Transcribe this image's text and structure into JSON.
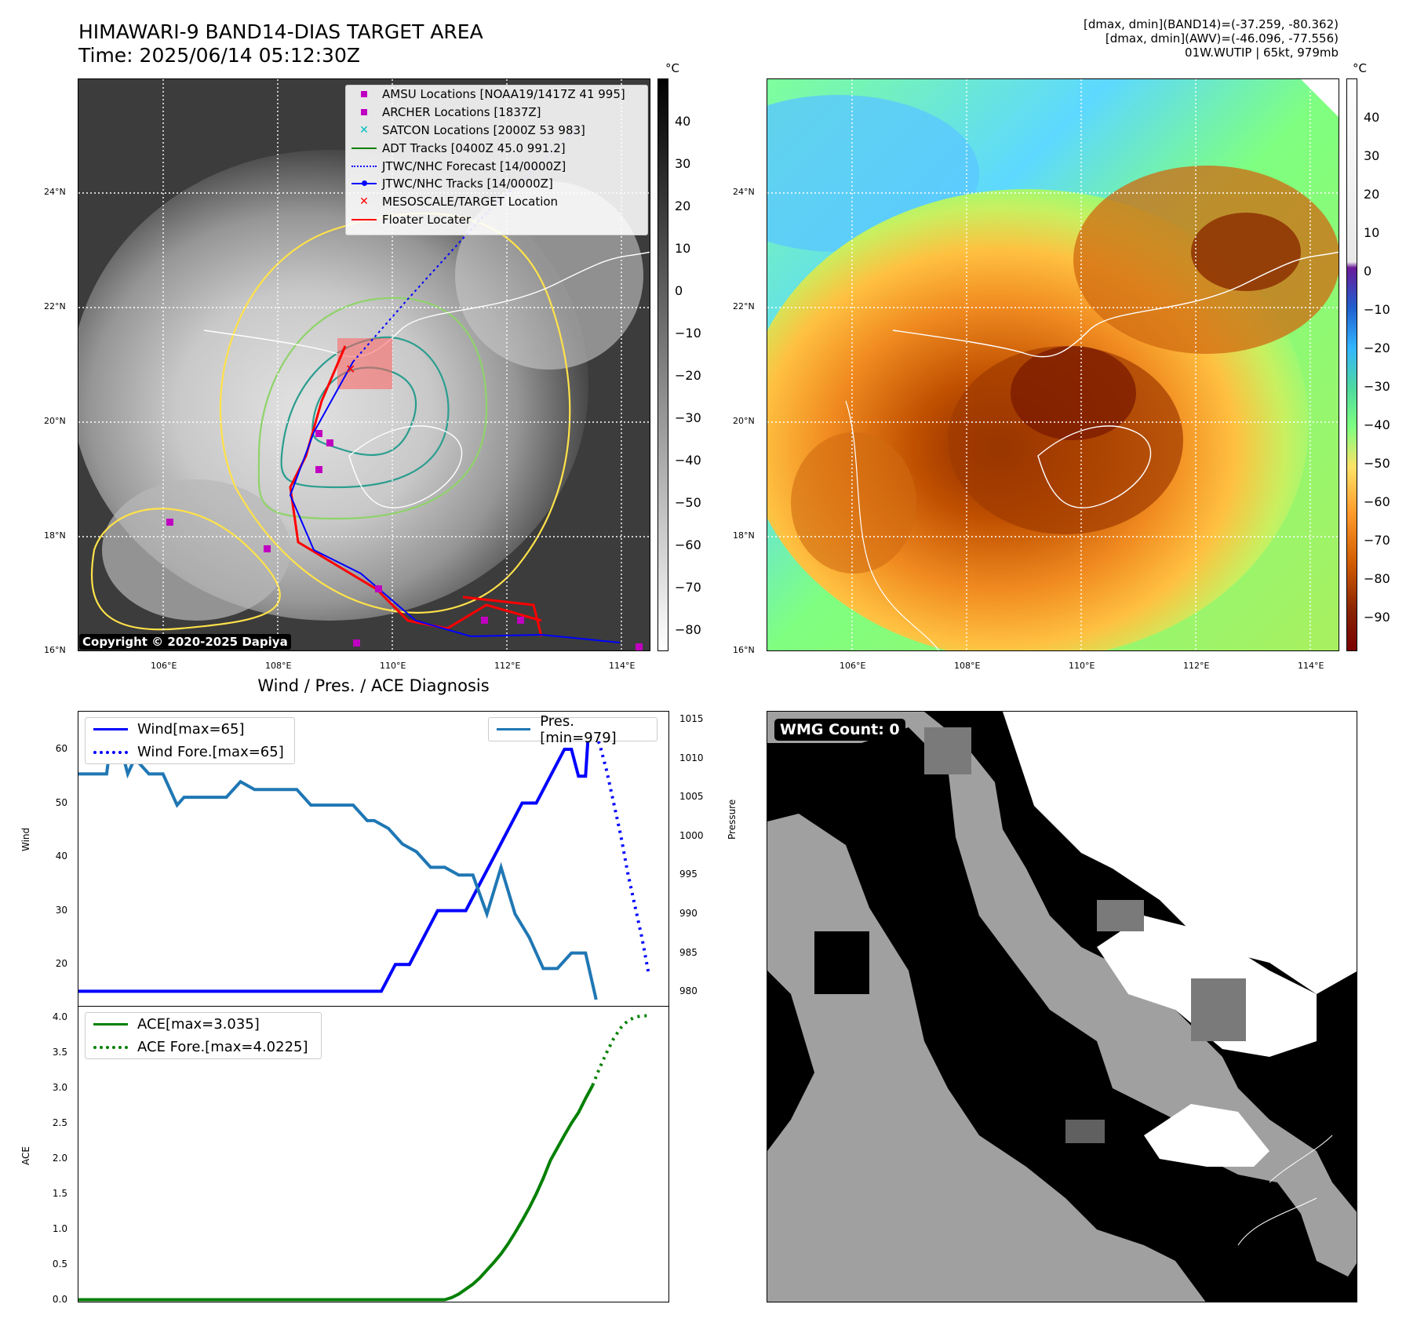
{
  "header": {
    "title_line1": "HIMAWARI-9 BAND14-DIAS TARGET AREA",
    "title_line2": "Time: 2025/06/14 05:12:30Z",
    "info_line1": "[dmax, dmin](BAND14)=(-37.259, -80.362)",
    "info_line2": "[dmax, dmin](AWV)=(-46.096, -77.556)",
    "info_line3": "01W.WUTIP | 65kt, 979mb"
  },
  "map_ticks": {
    "lat": [
      "24°N",
      "22°N",
      "20°N",
      "18°N",
      "16°N"
    ],
    "lon": [
      "106°E",
      "108°E",
      "110°E",
      "112°E",
      "114°E"
    ]
  },
  "colorbar_left": {
    "unit": "°C",
    "ticks": [
      "40",
      "30",
      "20",
      "10",
      "0",
      "−10",
      "−20",
      "−30",
      "−40",
      "−50",
      "−60",
      "−70",
      "−80"
    ]
  },
  "colorbar_right": {
    "unit": "°C",
    "ticks": [
      "40",
      "30",
      "20",
      "10",
      "0",
      "−10",
      "−20",
      "−30",
      "−40",
      "−50",
      "−60",
      "−70",
      "−80",
      "−90"
    ]
  },
  "legend": {
    "items": [
      {
        "label": "AMSU Locations [NOAA19/1417Z 41 995]",
        "color": "#c000c0"
      },
      {
        "label": "ARCHER Locations [1837Z]",
        "color": "#c000c0"
      },
      {
        "label": "SATCON Locations [2000Z 53 983]",
        "color": "#00c0c0"
      },
      {
        "label": "ADT Tracks [0400Z 45.0 991.2]",
        "color": "#008000"
      },
      {
        "label": "JTWC/NHC Forecast [14/0000Z]",
        "color": "#0000ff"
      },
      {
        "label": "JTWC/NHC Tracks [14/0000Z]",
        "color": "#0000ff"
      },
      {
        "label": "MESOSCALE/TARGET Location",
        "color": "#ff0000"
      },
      {
        "label": "Floater Locater",
        "color": "#ff0000"
      }
    ]
  },
  "copyright": "Copyright © 2020-2025 Dapiya",
  "wmg_count": "WMG Count: 0",
  "chart_data": [
    {
      "type": "line",
      "title": "Wind / Pres. / ACE Diagnosis",
      "ylabel": "Wind",
      "ylabel_right": "Pressure",
      "ylim": [
        12,
        67
      ],
      "ylim_right": [
        978,
        1016
      ],
      "yticks": [
        "60",
        "50",
        "40",
        "30",
        "20"
      ],
      "yticks_right": [
        "1015",
        "1010",
        "1005",
        "1000",
        "995",
        "990",
        "985",
        "980"
      ],
      "legend_left": [
        "Wind[max=65]",
        "Wind Fore.[max=65]"
      ],
      "legend_right": [
        "Pres.[min=979]"
      ],
      "series": [
        {
          "name": "Wind[max=65]",
          "axis": "left",
          "color": "#0000ff",
          "style": "solid",
          "x": [
            0,
            43,
            45,
            47,
            51,
            55,
            57,
            59,
            61,
            63,
            65,
            67,
            69,
            70,
            71,
            72,
            72.5
          ],
          "values": [
            15,
            15,
            20,
            20,
            30,
            30,
            35,
            40,
            45,
            50,
            50,
            55,
            60,
            60,
            55,
            55,
            65
          ]
        },
        {
          "name": "Wind Fore.[max=65]",
          "axis": "left",
          "color": "#0000ff",
          "style": "dotted",
          "x": [
            72.5,
            74,
            75,
            76,
            77,
            78,
            79,
            80,
            81
          ],
          "values": [
            65,
            61,
            56,
            50,
            44,
            37,
            31,
            25,
            18
          ]
        },
        {
          "name": "Pres.[min=979]",
          "axis": "right",
          "color": "#1f77b4",
          "style": "solid",
          "x": [
            0,
            4,
            5,
            7,
            8,
            10,
            12,
            14,
            15,
            17,
            19,
            21,
            23,
            25,
            27,
            29,
            31,
            33,
            35,
            37,
            39,
            41,
            42,
            44,
            46,
            48,
            50,
            52,
            54,
            56,
            58,
            60,
            62,
            64,
            66,
            68,
            70,
            72,
            73.5
          ],
          "values": [
            1008,
            1008,
            1015,
            1008,
            1010,
            1008,
            1008,
            1004,
            1005,
            1005,
            1005,
            1005,
            1007,
            1006,
            1006,
            1006,
            1006,
            1004,
            1004,
            1004,
            1004,
            1002,
            1002,
            1001,
            999,
            998,
            996,
            996,
            995,
            995,
            990,
            996,
            990,
            987,
            983,
            983,
            985,
            985,
            979
          ]
        }
      ]
    },
    {
      "type": "line",
      "ylabel": "ACE",
      "ylim": [
        -0.05,
        4.15
      ],
      "yticks": [
        "4.0",
        "3.5",
        "3.0",
        "2.5",
        "2.0",
        "1.5",
        "1.0",
        "0.5",
        "0.0"
      ],
      "legend": [
        "ACE[max=3.035]",
        "ACE Fore.[max=4.0225]"
      ],
      "series": [
        {
          "name": "ACE[max=3.035]",
          "color": "#008000",
          "style": "solid",
          "x": [
            0,
            52,
            53,
            54,
            55,
            56,
            57,
            58,
            59,
            60,
            61,
            62,
            63,
            64,
            65,
            66,
            67,
            68,
            69,
            70,
            71,
            72,
            73
          ],
          "values": [
            0,
            0,
            0.03,
            0.08,
            0.15,
            0.22,
            0.31,
            0.42,
            0.53,
            0.65,
            0.79,
            0.95,
            1.12,
            1.3,
            1.5,
            1.72,
            1.97,
            2.15,
            2.33,
            2.5,
            2.65,
            2.85,
            3.035
          ]
        },
        {
          "name": "ACE Fore.[max=4.0225]",
          "color": "#008000",
          "style": "dotted",
          "x": [
            73,
            74,
            75,
            76,
            77,
            78,
            79,
            80,
            81
          ],
          "values": [
            3.035,
            3.28,
            3.5,
            3.7,
            3.85,
            3.95,
            4.0,
            4.02,
            4.0225
          ]
        }
      ]
    }
  ]
}
